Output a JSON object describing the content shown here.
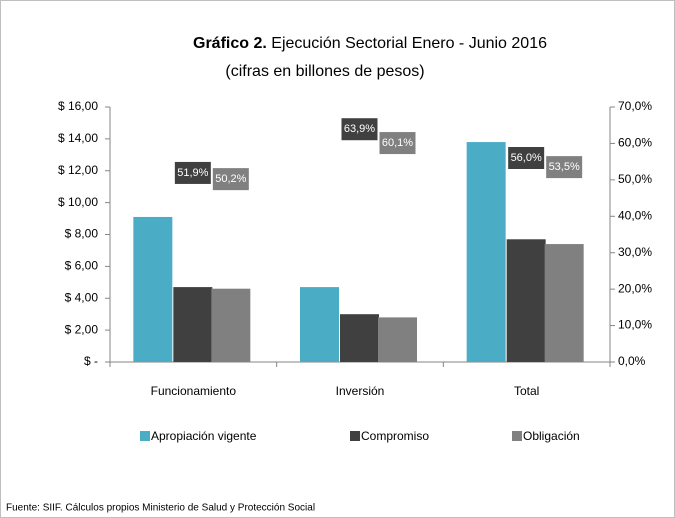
{
  "chart_data": {
    "type": "bar",
    "title_prefix": "Gráfico 2.",
    "title": "Ejecución Sectorial Enero - Junio   2016",
    "subtitle": "(cifras en billones de pesos)",
    "source": "Fuente: SIIF. Cálculos propios Ministerio de Salud y Protección Social",
    "categories": [
      "Funcionamiento",
      "Inversión",
      "Total"
    ],
    "series": [
      {
        "name": "Apropiación vigente",
        "color": "#4bacc6",
        "values": [
          9.1,
          4.7,
          13.8
        ]
      },
      {
        "name": "Compromiso",
        "color": "#404040",
        "values": [
          4.7,
          3.0,
          7.7
        ]
      },
      {
        "name": "Obligación",
        "color": "#808080",
        "values": [
          4.6,
          2.8,
          7.4
        ]
      },
      {
        "axis": "y2",
        "color": "#404040",
        "values": [
          51.9,
          63.9,
          56.0
        ],
        "value_labels": [
          "51,9%",
          "63,9%",
          "56,0%"
        ]
      },
      {
        "axis": "y2",
        "color": "#808080",
        "values": [
          50.2,
          60.1,
          53.5
        ],
        "value_labels": [
          "50,2%",
          "60,1%",
          "53,5%"
        ]
      }
    ],
    "ylim": [
      0,
      16
    ],
    "yticks": [
      {
        "value": 0,
        "label": "$ -"
      },
      {
        "value": 2,
        "label": "$ 2,00"
      },
      {
        "value": 4,
        "label": "$ 4,00"
      },
      {
        "value": 6,
        "label": "$ 6,00"
      },
      {
        "value": 8,
        "label": "$ 8,00"
      },
      {
        "value": 10,
        "label": "$ 10,00"
      },
      {
        "value": 12,
        "label": "$ 12,00"
      },
      {
        "value": 14,
        "label": "$ 14,00"
      },
      {
        "value": 16,
        "label": "$ 16,00"
      }
    ],
    "y2lim": [
      0,
      70
    ],
    "y2ticks": [
      {
        "value": 0,
        "label": "0,0%"
      },
      {
        "value": 10,
        "label": "10,0%"
      },
      {
        "value": 20,
        "label": "20,0%"
      },
      {
        "value": 30,
        "label": "30,0%"
      },
      {
        "value": 40,
        "label": "40,0%"
      },
      {
        "value": 50,
        "label": "50,0%"
      },
      {
        "value": 60,
        "label": "60,0%"
      },
      {
        "value": 70,
        "label": "70,0%"
      }
    ],
    "legend": "bottom"
  }
}
